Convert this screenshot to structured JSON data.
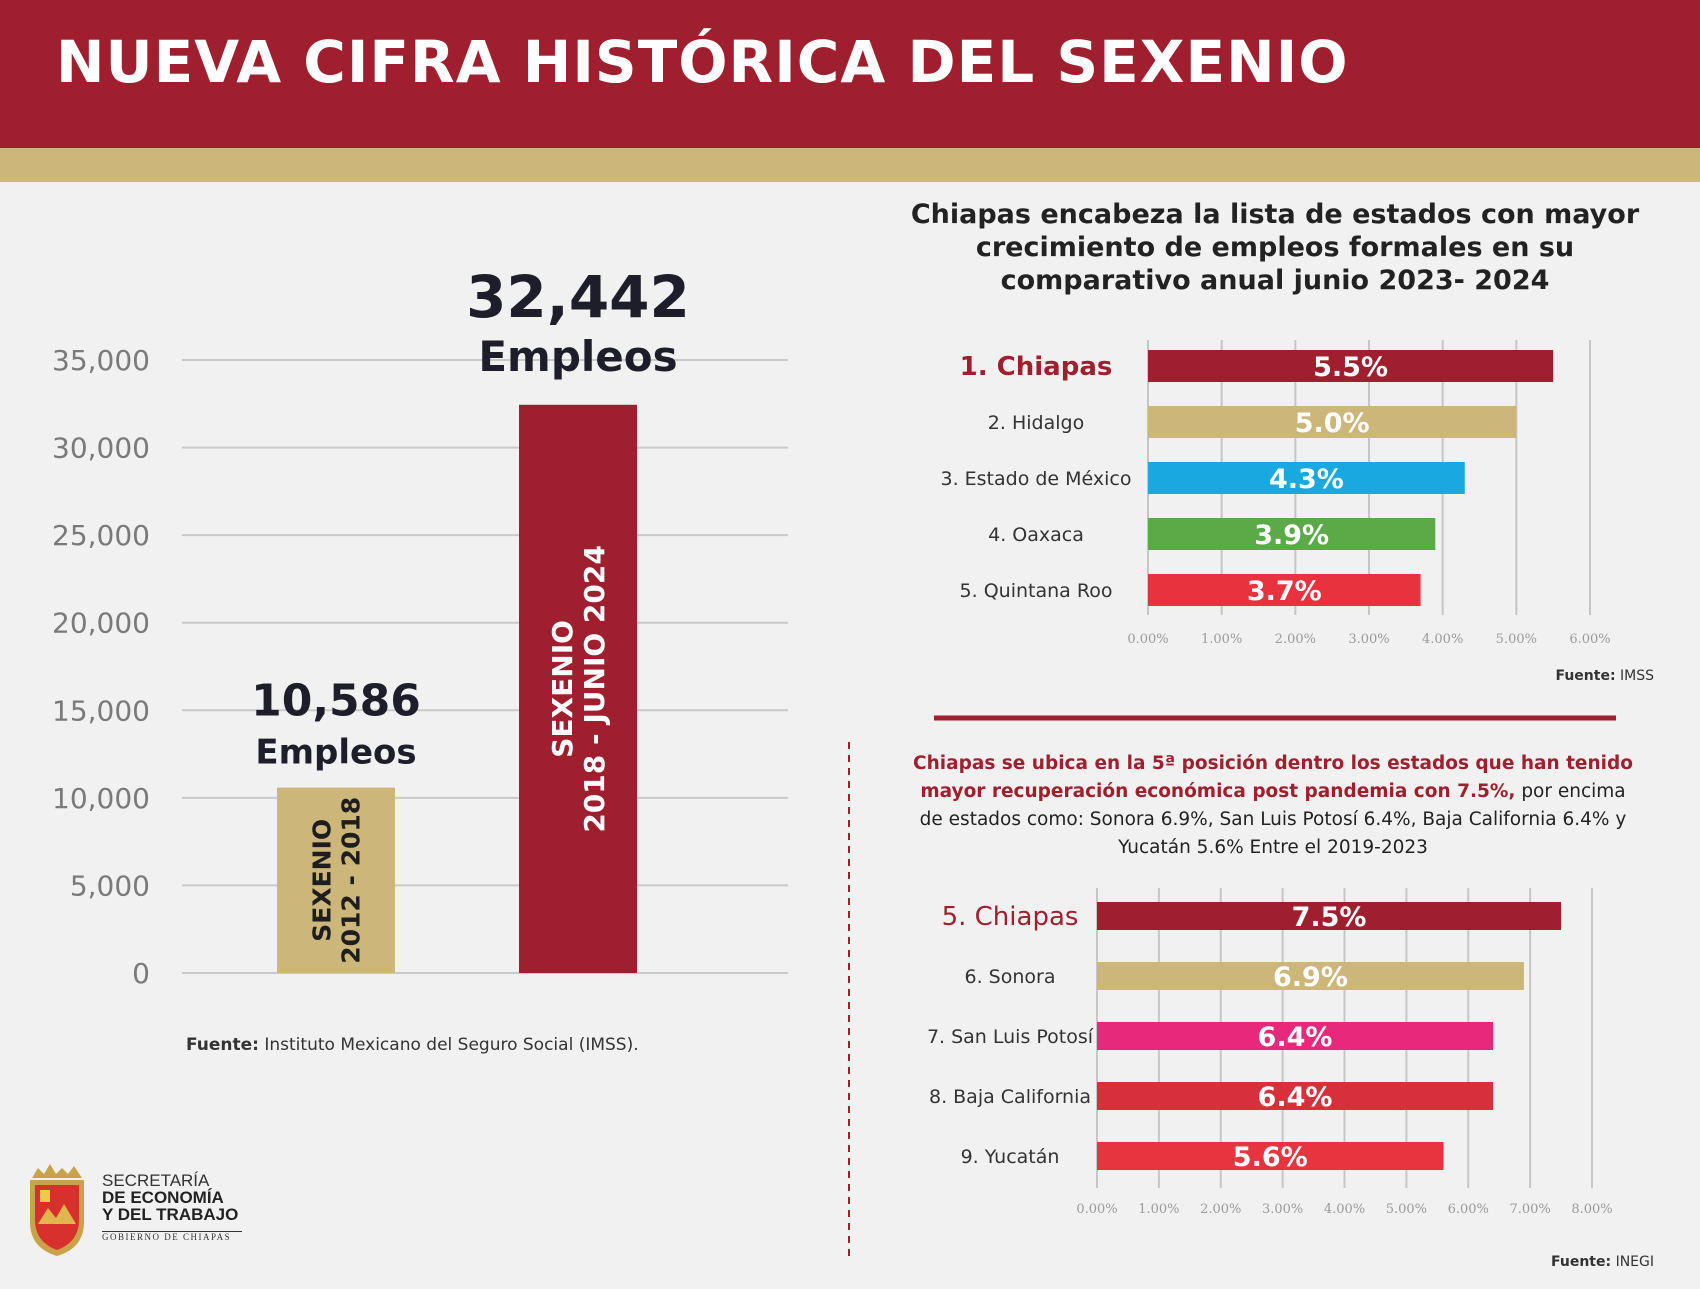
{
  "title": "NUEVA CIFRA HISTÓRICA DEL SEXENIO",
  "colors": {
    "brand_red": "#a01f2e",
    "gold": "#cdb67a",
    "cyan": "#1aa8e0",
    "green": "#5aab48",
    "red_bright": "#e8323e",
    "magenta": "#e8287a",
    "red_mid": "#d8303a",
    "red_soft": "#e8343f"
  },
  "chart_data": [
    {
      "type": "bar",
      "orientation": "vertical",
      "categories": [
        "SEXENIO 2012 - 2018",
        "SEXENIO 2018 - JUNIO 2024"
      ],
      "values": [
        10586,
        32442
      ],
      "value_labels": [
        "10,586",
        "32,442"
      ],
      "value_unit": "Empleos",
      "bar_text": [
        [
          "SEXENIO",
          "2012 - 2018"
        ],
        [
          "SEXENIO",
          "2018 - JUNIO 2024"
        ]
      ],
      "ylim": [
        0,
        35000
      ],
      "yticks": [
        0,
        5000,
        10000,
        15000,
        20000,
        25000,
        30000,
        35000
      ],
      "ytick_labels": [
        "0",
        "5,000",
        "10,000",
        "15,000",
        "20,000",
        "25,000",
        "30,000",
        "35,000"
      ],
      "source_label": "Fuente:",
      "source_text": "Instituto Mexicano del Seguro Social (IMSS)."
    },
    {
      "type": "bar",
      "orientation": "horizontal",
      "title": "Chiapas encabeza la lista de estados con mayor crecimiento de empleos formales en su comparativo anual junio 2023- 2024",
      "categories": [
        "1. Chiapas",
        "2. Hidalgo",
        "3. Estado de México",
        "4. Oaxaca",
        "5. Quintana Roo"
      ],
      "values": [
        5.5,
        5.0,
        4.3,
        3.9,
        3.7
      ],
      "value_labels": [
        "5.5%",
        "5.0%",
        "4.3%",
        "3.9%",
        "3.7%"
      ],
      "xlim": [
        0,
        6
      ],
      "xticks": [
        "0.00%",
        "1.00%",
        "2.00%",
        "3.00%",
        "4.00%",
        "5.00%",
        "6.00%"
      ],
      "source_label": "Fuente:",
      "source_text": "IMSS"
    },
    {
      "type": "bar",
      "orientation": "horizontal",
      "description_highlight": "Chiapas se ubica en la 5ª posición dentro los estados que han tenido mayor recuperación económica post pandemia con 7.5%,",
      "description_rest": "por encima de estados como: Sonora 6.9%, San Luis Potosí 6.4%, Baja California 6.4% y Yucatán 5.6% Entre el 2019-2023",
      "categories": [
        "5. Chiapas",
        "6. Sonora",
        "7. San Luis Potosí",
        "8. Baja California",
        "9. Yucatán"
      ],
      "values": [
        7.5,
        6.9,
        6.4,
        6.4,
        5.6
      ],
      "value_labels": [
        "7.5%",
        "6.9%",
        "6.4%",
        "6.4%",
        "5.6%"
      ],
      "xlim": [
        0,
        8
      ],
      "xticks": [
        "0.00%",
        "1.00%",
        "2.00%",
        "3.00%",
        "4.00%",
        "5.00%",
        "6.00%",
        "7.00%",
        "8.00%"
      ],
      "source_label": "Fuente:",
      "source_text": "INEGI"
    }
  ],
  "logo": {
    "line1": "SECRETARÍA",
    "line2": "DE ECONOMÍA",
    "line3": "Y DEL TRABAJO",
    "line4": "GOBIERNO DE CHIAPAS"
  }
}
